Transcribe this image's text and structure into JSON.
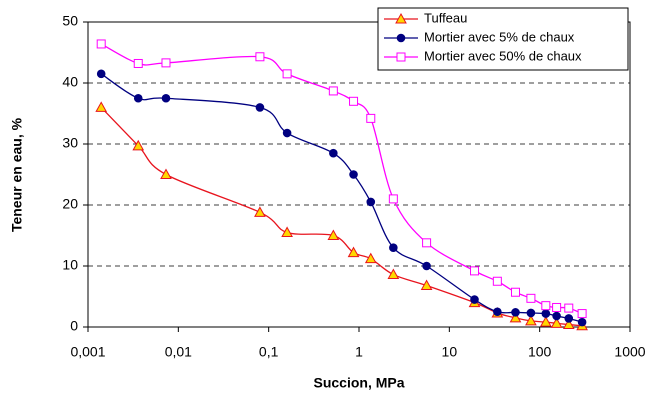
{
  "chart_data": {
    "type": "line",
    "x_label": "Succion, MPa",
    "y_label": "Teneur en eau, %",
    "x": [
      0.0014,
      0.0036,
      0.0073,
      0.08,
      0.16,
      0.52,
      0.87,
      1.35,
      2.4,
      5.6,
      19,
      34,
      54,
      80,
      117,
      154,
      210,
      295
    ],
    "series": [
      {
        "name": "Tuffeau",
        "color": "#e8141e",
        "marker": "triangle",
        "marker_fill": "#ffd700",
        "values": [
          36,
          29.7,
          25,
          18.8,
          15.5,
          15,
          12.2,
          11.2,
          8.6,
          6.8,
          4,
          2.3,
          1.5,
          1,
          0.8,
          0.6,
          0.4,
          0.2
        ]
      },
      {
        "name": "Mortier avec 5% de chaux",
        "color": "#000080",
        "marker": "circle",
        "marker_fill": "#000080",
        "values": [
          41.5,
          37.5,
          37.5,
          36,
          31.8,
          28.5,
          25,
          20.5,
          13,
          10,
          4.5,
          2.5,
          2.4,
          2.3,
          2.2,
          1.8,
          1.4,
          0.8
        ]
      },
      {
        "name": "Mortier avec 50% de chaux",
        "color": "#ff00ff",
        "marker": "square",
        "marker_fill": "#ffffff",
        "values": [
          46.4,
          43.2,
          43.3,
          44.3,
          41.5,
          38.7,
          37,
          34.2,
          21,
          13.8,
          9.2,
          7.5,
          5.7,
          4.7,
          3.5,
          3.2,
          3.1,
          2.2
        ]
      }
    ],
    "x_log": true,
    "xlim": [
      0.001,
      1000
    ],
    "xticks": [
      {
        "value": 0.001,
        "label": "0,001"
      },
      {
        "value": 0.01,
        "label": "0,01"
      },
      {
        "value": 0.1,
        "label": "0,1"
      },
      1,
      10,
      100,
      1000
    ],
    "ylim": [
      0,
      50
    ],
    "yticks": [
      0,
      10,
      20,
      30,
      40,
      50
    ],
    "grid": true,
    "legend_position": "upper right"
  }
}
